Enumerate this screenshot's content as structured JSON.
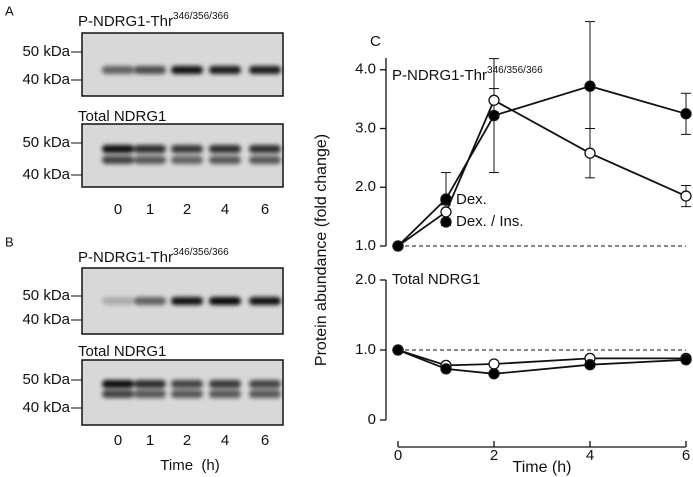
{
  "blots": [
    {
      "label": "A",
      "lanes": [
        "0",
        "1",
        "2",
        "4",
        "6"
      ],
      "blots": [
        {
          "title": "P-NDRG1-Thr",
          "title_sup": "346/356/366",
          "markers": [
            "50 kDa",
            "40 kDa"
          ]
        },
        {
          "title": "Total NDRG1",
          "markers": [
            "50 kDa",
            "40 kDa"
          ]
        }
      ]
    },
    {
      "label": "B",
      "lanes": [
        "0",
        "1",
        "2",
        "4",
        "6"
      ],
      "xlabel": "Time  (h)",
      "blots": [
        {
          "title": "P-NDRG1-Thr",
          "title_sup": "346/356/366",
          "markers": [
            "50 kDa",
            "40 kDa"
          ]
        },
        {
          "title": "Total NDRG1",
          "markers": [
            "50 kDa",
            "40 kDa"
          ]
        }
      ]
    }
  ],
  "panel_label": "C",
  "chart_data": [
    {
      "type": "line",
      "title": "P-NDRG1-Thr",
      "title_sup": "346/356/366",
      "ylabel": "Protein abundance (fold change)",
      "x": [
        0,
        1,
        2,
        4,
        6
      ],
      "xlim": [
        0,
        6
      ],
      "ylim": [
        1,
        4.2
      ],
      "yticks": [
        {
          "value": 1,
          "label": "1.0"
        },
        {
          "value": 2,
          "label": "2.0"
        },
        {
          "value": 3,
          "label": "3.0"
        },
        {
          "value": 4,
          "label": "4.0"
        }
      ],
      "reference_line": 1,
      "series": [
        {
          "name": "Dex.",
          "color": "#ffffff",
          "values": [
            1.0,
            1.58,
            3.48,
            2.58,
            1.85
          ],
          "errors": [
            0,
            0.12,
            0.2,
            0.42,
            0.18
          ]
        },
        {
          "name": "Dex. / Ins.",
          "color": "#000000",
          "values": [
            1.0,
            1.8,
            3.22,
            3.72,
            3.25
          ],
          "errors": [
            0,
            0.45,
            0.97,
            1.1,
            0.35
          ]
        }
      ]
    },
    {
      "type": "line",
      "title": "Total NDRG1",
      "xlabel": "Time (h)",
      "x": [
        0,
        1,
        2,
        4,
        6
      ],
      "xlim": [
        0,
        6
      ],
      "ylim": [
        0,
        2
      ],
      "xticks": [
        0,
        2,
        4,
        6
      ],
      "yticks": [
        0,
        {
          "value": 1,
          "label": "1.0"
        },
        {
          "value": 2,
          "label": "2.0"
        }
      ],
      "reference_line": 1,
      "series": [
        {
          "color": "#ffffff",
          "values": [
            1.0,
            0.78,
            0.8,
            0.88,
            0.88
          ]
        },
        {
          "color": "#000000",
          "values": [
            1.0,
            0.73,
            0.66,
            0.79,
            0.86
          ]
        }
      ]
    }
  ]
}
